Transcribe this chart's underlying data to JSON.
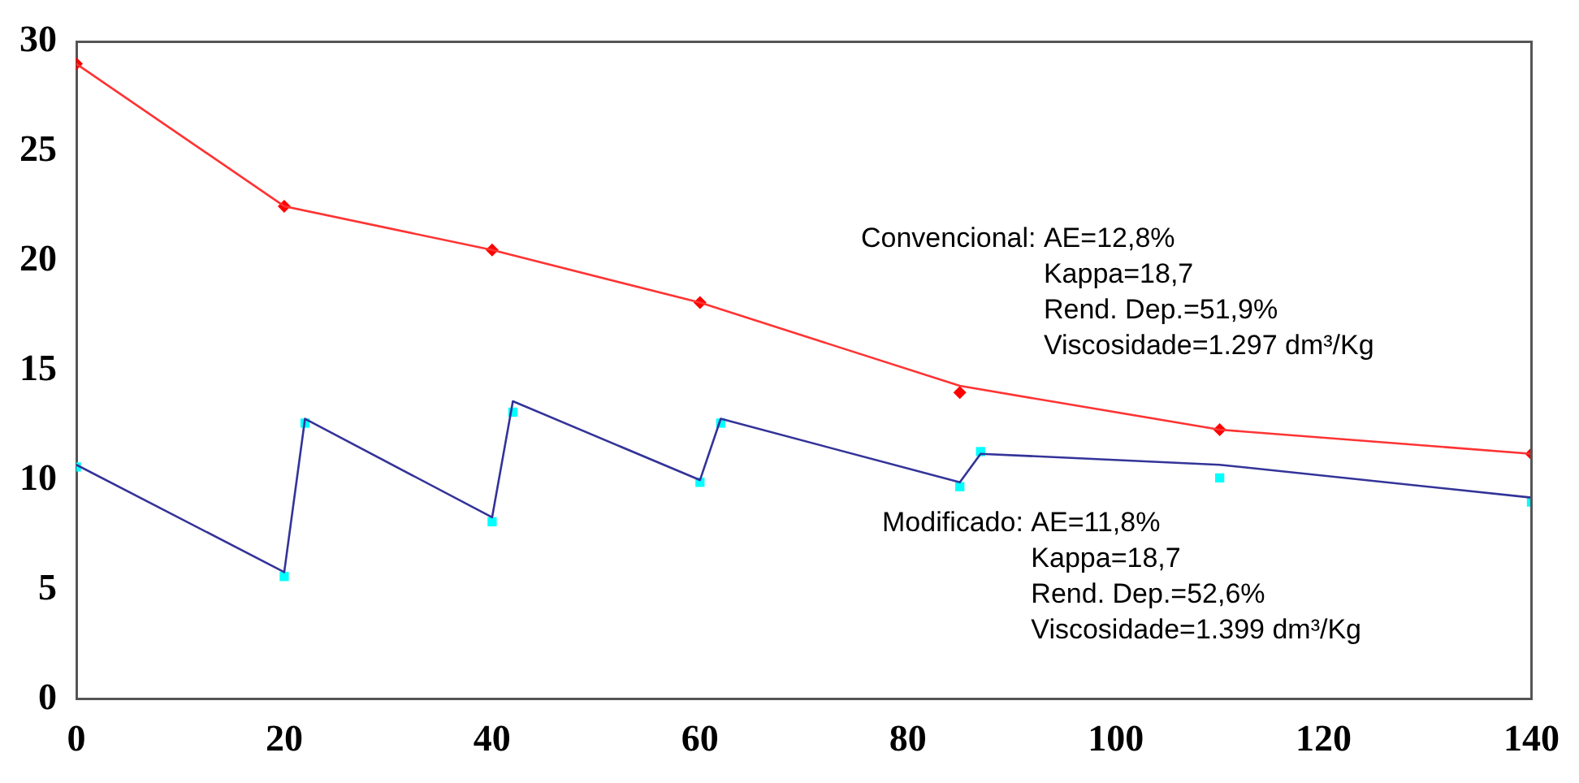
{
  "chart_data": {
    "type": "line",
    "xlim": [
      0,
      140
    ],
    "xticks": [
      0,
      20,
      40,
      60,
      80,
      100,
      120,
      140
    ],
    "ylim": [
      0,
      30
    ],
    "yticks": [
      0,
      5,
      10,
      15,
      20,
      25,
      30
    ],
    "grid": false,
    "legend": false,
    "series": [
      {
        "color": "#ff3333",
        "marker": "none",
        "x": [
          0,
          20,
          40,
          60,
          85,
          110,
          140
        ],
        "values": [
          29,
          22.5,
          20.5,
          18.1,
          14.3,
          12.3,
          11.2
        ]
      },
      {
        "type": "scatter",
        "color": "#ff0000",
        "marker": "diamond",
        "x": [
          0,
          20,
          40,
          60,
          85,
          110,
          140
        ],
        "values": [
          29,
          22.5,
          20.5,
          18.1,
          14.0,
          12.3,
          11.2
        ]
      },
      {
        "color": "#333399",
        "marker": "none",
        "x": [
          0,
          20,
          22,
          40,
          42,
          60,
          62,
          85,
          87,
          110,
          140
        ],
        "values": [
          10.7,
          5.8,
          12.8,
          8.3,
          13.6,
          10.0,
          12.8,
          9.9,
          11.2,
          10.7,
          9.2
        ]
      },
      {
        "type": "scatter",
        "color": "#00ffff",
        "marker": "square",
        "x": [
          0,
          20,
          22,
          40,
          42,
          60,
          62,
          85,
          87,
          110,
          140
        ],
        "values": [
          10.6,
          5.6,
          12.6,
          8.1,
          13.1,
          9.9,
          12.6,
          9.7,
          11.3,
          10.1,
          9.0
        ]
      }
    ],
    "annotations": [
      "Convencional: AE=12,8%\nKappa=18,7\nRend. Dep.=51,9%\nViscosidade=1.297 dm³/Kg",
      "Modificado: AE=11,8%\nKappa=18,7\nRend. Dep.=52,6%\nViscosidade=1.399 dm³/Kg"
    ]
  }
}
